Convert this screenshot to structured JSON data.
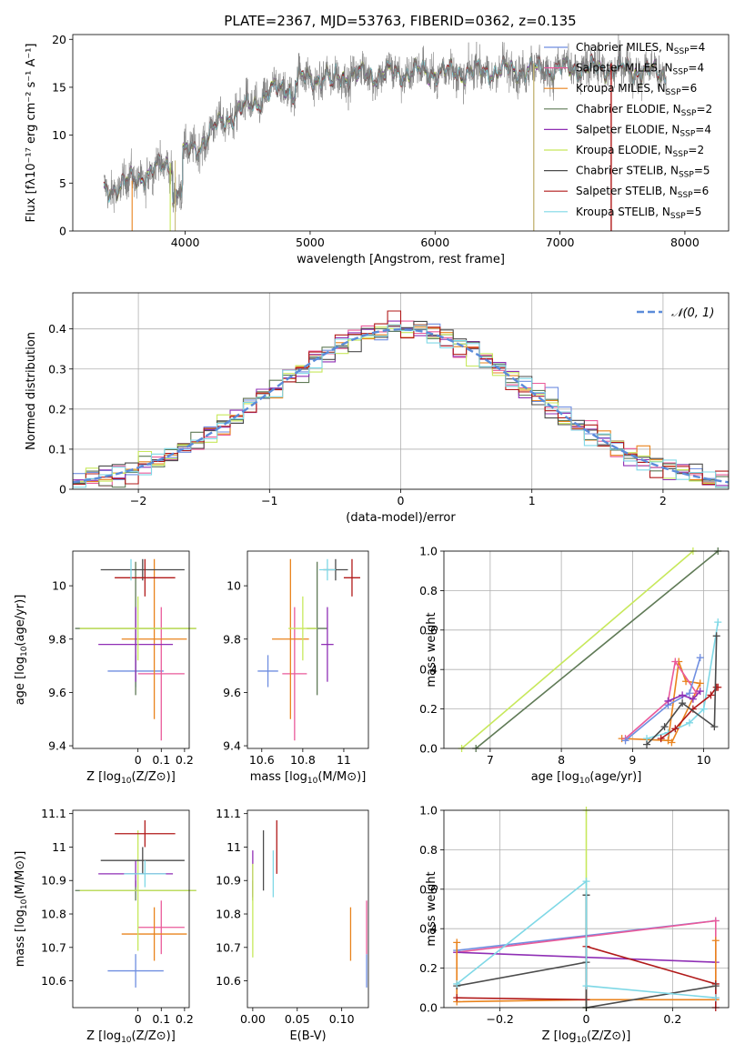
{
  "figure": {
    "title": "PLATE=2367, MJD=53763, FIBERID=0362, z=0.135"
  },
  "colors": {
    "Chabrier MILES": "#6f8ee0",
    "Salpeter MILES": "#ea5a9a",
    "Kroupa MILES": "#e9831d",
    "Chabrier ELODIE": "#5f7a56",
    "Salpeter ELODIE": "#8f2fb5",
    "Kroupa ELODIE": "#c7e85b",
    "Chabrier STELIB": "#4c4c4c",
    "Salpeter STELIB": "#b11a1a",
    "Kroupa STELIB": "#7fd8e6",
    "data": "#7a7a7a",
    "normal": "#5b8bd9"
  },
  "chart_data": [
    {
      "id": "spectrum",
      "type": "line",
      "title": "PLATE=2367, MJD=53763, FIBERID=0362, z=0.135",
      "xlabel": "wavelength [Angstrom, rest frame]",
      "ylabel": "Flux [fλ10⁻¹⁷ erg cm⁻² s⁻¹ A⁻¹]",
      "xlim": [
        3100,
        8350
      ],
      "ylim": [
        0,
        20.5
      ],
      "xticks": [
        4000,
        5000,
        6000,
        7000,
        8000
      ],
      "yticks": [
        0,
        5,
        10,
        15,
        20
      ],
      "grid": false,
      "legend_position": "top-right",
      "continuum": {
        "x": [
          3350,
          3500,
          3700,
          3900,
          4100,
          4300,
          4500,
          4700,
          4900,
          5100,
          5300,
          5500,
          5700,
          5900,
          6100,
          6300,
          6500,
          6700,
          6900,
          7100,
          7300,
          7500,
          7700,
          7850
        ],
        "y": [
          4.2,
          4.8,
          6.0,
          7.2,
          8.8,
          11.5,
          13.0,
          14.5,
          15.8,
          16.0,
          16.2,
          16.3,
          16.5,
          16.6,
          16.5,
          16.6,
          16.7,
          16.8,
          16.9,
          16.9,
          17.0,
          16.9,
          16.6,
          16.4
        ]
      },
      "series": [
        {
          "name": "Chabrier MILES, N_SSP=4",
          "color": "#6f8ee0"
        },
        {
          "name": "Salpeter MILES, N_SSP=4",
          "color": "#ea5a9a"
        },
        {
          "name": "Kroupa MILES, N_SSP=6",
          "color": "#e9831d"
        },
        {
          "name": "Chabrier ELODIE, N_SSP=2",
          "color": "#5f7a56"
        },
        {
          "name": "Salpeter ELODIE, N_SSP=4",
          "color": "#8f2fb5"
        },
        {
          "name": "Kroupa ELODIE, N_SSP=2",
          "color": "#c7e85b"
        },
        {
          "name": "Chabrier STELIB, N_SSP=5",
          "color": "#4c4c4c"
        },
        {
          "name": "Salpeter STELIB, N_SSP=6",
          "color": "#b11a1a"
        },
        {
          "name": "Kroupa STELIB, N_SSP=5",
          "color": "#7fd8e6"
        }
      ],
      "legend": [
        {
          "pre": "Chabrier MILES, N",
          "sub": "SSP",
          "post": "=4",
          "color": "#6f8ee0"
        },
        {
          "pre": "Salpeter MILES, N",
          "sub": "SSP",
          "post": "=4",
          "color": "#ea5a9a"
        },
        {
          "pre": "Kroupa MILES, N",
          "sub": "SSP",
          "post": "=6",
          "color": "#e9831d"
        },
        {
          "pre": "Chabrier ELODIE, N",
          "sub": "SSP",
          "post": "=2",
          "color": "#5f7a56"
        },
        {
          "pre": "Salpeter ELODIE, N",
          "sub": "SSP",
          "post": "=4",
          "color": "#8f2fb5"
        },
        {
          "pre": "Kroupa ELODIE, N",
          "sub": "SSP",
          "post": "=2",
          "color": "#c7e85b"
        },
        {
          "pre": "Chabrier STELIB, N",
          "sub": "SSP",
          "post": "=5",
          "color": "#4c4c4c"
        },
        {
          "pre": "Salpeter STELIB, N",
          "sub": "SSP",
          "post": "=6",
          "color": "#b11a1a"
        },
        {
          "pre": "Kroupa STELIB, N",
          "sub": "SSP",
          "post": "=5",
          "color": "#7fd8e6"
        }
      ],
      "vertical_lines": [
        {
          "x": 6790,
          "color": "#c7b87a"
        },
        {
          "x": 7410,
          "color": "#b11a1a"
        }
      ]
    },
    {
      "id": "residuals",
      "type": "line",
      "xlabel": "(data-model)/error",
      "ylabel": "Normed distribution",
      "xlim": [
        -2.5,
        2.5
      ],
      "ylim": [
        0,
        0.49
      ],
      "xticks": [
        -2,
        -1,
        0,
        1,
        2
      ],
      "yticks": [
        0.0,
        0.1,
        0.2,
        0.3,
        0.4
      ],
      "grid": true,
      "legend_position": "top-right",
      "legend": "𝒩(0, 1)",
      "normal": {
        "mean": 0,
        "sigma": 1
      }
    },
    {
      "id": "age-vs-z",
      "type": "scatter",
      "xlabel_pre": "Z [log",
      "xlabel_sub": "10",
      "xlabel_post": "(Z/Z⊙)]",
      "ylabel_pre": "age  [log",
      "ylabel_sub": "10",
      "ylabel_post": "(age/yr)]",
      "xlim": [
        -0.28,
        0.22
      ],
      "ylim": [
        9.39,
        10.13
      ],
      "xticks": [
        0.0,
        0.1,
        0.2
      ],
      "yticks": [
        9.4,
        9.6,
        9.8,
        10.0
      ],
      "grid": false,
      "points": [
        {
          "x": -0.01,
          "y": 9.68,
          "xerr": 0.12,
          "yerr": 0.06,
          "color": "#6f8ee0"
        },
        {
          "x": 0.1,
          "y": 9.67,
          "xerr": 0.1,
          "yerr": 0.25,
          "color": "#ea5a9a"
        },
        {
          "x": 0.07,
          "y": 9.8,
          "xerr": 0.14,
          "yerr": 0.3,
          "color": "#e9831d"
        },
        {
          "x": -0.01,
          "y": 9.84,
          "xerr": 0.26,
          "yerr": 0.25,
          "color": "#5f7a56"
        },
        {
          "x": -0.01,
          "y": 9.78,
          "xerr": 0.16,
          "yerr": 0.14,
          "color": "#8f2fb5"
        },
        {
          "x": 0.0,
          "y": 9.84,
          "xerr": 0.25,
          "yerr": 0.12,
          "color": "#c7e85b"
        },
        {
          "x": 0.02,
          "y": 10.06,
          "xerr": 0.18,
          "yerr": 0.04,
          "color": "#4c4c4c"
        },
        {
          "x": 0.03,
          "y": 10.03,
          "xerr": 0.13,
          "yerr": 0.07,
          "color": "#b11a1a"
        },
        {
          "x": -0.03,
          "y": 10.06,
          "xerr": 0.0,
          "yerr": 0.04,
          "color": "#7fd8e6"
        }
      ]
    },
    {
      "id": "age-vs-mass",
      "type": "scatter",
      "xlabel_pre": "mass [log",
      "xlabel_sub": "10",
      "xlabel_post": "(M/M⊙)]",
      "xlim": [
        10.53,
        11.12
      ],
      "ylim": [
        9.39,
        10.13
      ],
      "xticks": [
        10.6,
        10.8,
        11.0
      ],
      "yticks": [
        9.4,
        9.6,
        9.8,
        10.0
      ],
      "grid": false,
      "points": [
        {
          "x": 10.63,
          "y": 9.68,
          "xerr": 0.05,
          "yerr": 0.06,
          "color": "#6f8ee0"
        },
        {
          "x": 10.76,
          "y": 9.67,
          "xerr": 0.06,
          "yerr": 0.25,
          "color": "#ea5a9a"
        },
        {
          "x": 10.74,
          "y": 9.8,
          "xerr": 0.09,
          "yerr": 0.3,
          "color": "#e9831d"
        },
        {
          "x": 10.87,
          "y": 9.84,
          "xerr": 0.05,
          "yerr": 0.25,
          "color": "#5f7a56"
        },
        {
          "x": 10.92,
          "y": 9.78,
          "xerr": 0.03,
          "yerr": 0.14,
          "color": "#8f2fb5"
        },
        {
          "x": 10.8,
          "y": 9.84,
          "xerr": 0.07,
          "yerr": 0.12,
          "color": "#c7e85b"
        },
        {
          "x": 10.96,
          "y": 10.06,
          "xerr": 0.06,
          "yerr": 0.04,
          "color": "#4c4c4c"
        },
        {
          "x": 11.04,
          "y": 10.03,
          "xerr": 0.04,
          "yerr": 0.07,
          "color": "#b11a1a"
        },
        {
          "x": 10.92,
          "y": 10.06,
          "xerr": 0.04,
          "yerr": 0.04,
          "color": "#7fd8e6"
        }
      ]
    },
    {
      "id": "weight-vs-age",
      "type": "line",
      "xlabel_pre": "age  [log",
      "xlabel_sub": "10",
      "xlabel_post": "(age/yr)]",
      "ylabel": "mass weight",
      "xlim": [
        6.35,
        10.35
      ],
      "ylim": [
        0,
        1.0
      ],
      "xticks": [
        7,
        8,
        9,
        10
      ],
      "yticks": [
        0.0,
        0.2,
        0.4,
        0.6,
        0.8,
        1.0
      ],
      "grid": true,
      "series": [
        {
          "name": "Kroupa ELODIE",
          "color": "#c7e85b",
          "x": [
            6.6,
            9.85
          ],
          "y": [
            0.0,
            1.0
          ]
        },
        {
          "name": "Chabrier ELODIE",
          "color": "#5f7a56",
          "x": [
            6.8,
            10.2
          ],
          "y": [
            0.0,
            1.0
          ]
        },
        {
          "name": "Kroupa MILES",
          "color": "#e9831d",
          "x": [
            8.85,
            9.5,
            9.65,
            9.75,
            9.95,
            9.55
          ],
          "y": [
            0.05,
            0.04,
            0.44,
            0.34,
            0.33,
            0.03
          ]
        },
        {
          "name": "Salpeter MILES",
          "color": "#ea5a9a",
          "x": [
            8.9,
            9.5,
            9.6,
            9.9
          ],
          "y": [
            0.05,
            0.24,
            0.44,
            0.28
          ]
        },
        {
          "name": "Chabrier MILES",
          "color": "#6f8ee0",
          "x": [
            8.9,
            9.5,
            9.8,
            9.95
          ],
          "y": [
            0.04,
            0.22,
            0.28,
            0.46
          ]
        },
        {
          "name": "Salpeter ELODIE",
          "color": "#8f2fb5",
          "x": [
            9.5,
            9.7,
            9.85,
            9.95
          ],
          "y": [
            0.24,
            0.27,
            0.25,
            0.29
          ]
        },
        {
          "name": "Kroupa STELIB",
          "color": "#7fd8e6",
          "x": [
            9.2,
            9.5,
            9.8,
            10.0,
            10.2
          ],
          "y": [
            0.05,
            0.08,
            0.13,
            0.2,
            0.64
          ]
        },
        {
          "name": "Salpeter STELIB",
          "color": "#b11a1a",
          "x": [
            9.4,
            9.6,
            9.85,
            10.1,
            10.18,
            10.2
          ],
          "y": [
            0.05,
            0.1,
            0.2,
            0.27,
            0.31,
            0.31
          ]
        },
        {
          "name": "Chabrier STELIB",
          "color": "#4c4c4c",
          "x": [
            9.2,
            9.45,
            9.7,
            10.15,
            10.18
          ],
          "y": [
            0.02,
            0.11,
            0.23,
            0.11,
            0.57
          ]
        }
      ]
    },
    {
      "id": "mass-vs-z",
      "type": "scatter",
      "xlabel_pre": "Z [log",
      "xlabel_sub": "10",
      "xlabel_post": "(Z/Z⊙)]",
      "ylabel_pre": "mass [log",
      "ylabel_sub": "10",
      "ylabel_post": "(M/M⊙)]",
      "xlim": [
        -0.28,
        0.22
      ],
      "ylim": [
        10.52,
        11.11
      ],
      "xticks": [
        0.0,
        0.1,
        0.2
      ],
      "yticks": [
        10.6,
        10.7,
        10.8,
        10.9,
        11.0,
        11.1
      ],
      "grid": false,
      "points": [
        {
          "x": -0.01,
          "y": 10.63,
          "xerr": 0.12,
          "yerr": 0.05,
          "color": "#6f8ee0"
        },
        {
          "x": 0.1,
          "y": 10.76,
          "xerr": 0.1,
          "yerr": 0.08,
          "color": "#ea5a9a"
        },
        {
          "x": 0.07,
          "y": 10.74,
          "xerr": 0.14,
          "yerr": 0.08,
          "color": "#e9831d"
        },
        {
          "x": -0.01,
          "y": 10.87,
          "xerr": 0.26,
          "yerr": 0.03,
          "color": "#5f7a56"
        },
        {
          "x": -0.01,
          "y": 10.92,
          "xerr": 0.16,
          "yerr": 0.04,
          "color": "#8f2fb5"
        },
        {
          "x": 0.0,
          "y": 10.87,
          "xerr": 0.25,
          "yerr": 0.18,
          "color": "#c7e85b"
        },
        {
          "x": 0.02,
          "y": 10.96,
          "xerr": 0.18,
          "yerr": 0.04,
          "color": "#4c4c4c"
        },
        {
          "x": 0.03,
          "y": 11.04,
          "xerr": 0.13,
          "yerr": 0.04,
          "color": "#b11a1a"
        },
        {
          "x": 0.03,
          "y": 10.92,
          "xerr": 0.09,
          "yerr": 0.04,
          "color": "#7fd8e6"
        }
      ]
    },
    {
      "id": "mass-vs-ebv",
      "type": "scatter",
      "xlabel": "E(B-V)",
      "xlim": [
        -0.006,
        0.13
      ],
      "ylim": [
        10.52,
        11.11
      ],
      "xticks": [
        0.0,
        0.05,
        0.1
      ],
      "xticklabels": [
        "0.00",
        "0.05",
        "0.10"
      ],
      "yticks": [
        10.6,
        10.7,
        10.8,
        10.9,
        11.0,
        11.1
      ],
      "grid": false,
      "points": [
        {
          "x": 0.128,
          "y": 10.63,
          "yerr": 0.05,
          "color": "#6f8ee0"
        },
        {
          "x": 0.128,
          "y": 10.76,
          "yerr": 0.08,
          "color": "#ea5a9a"
        },
        {
          "x": 0.11,
          "y": 10.74,
          "yerr": 0.08,
          "color": "#e9831d"
        },
        {
          "x": 0.0,
          "y": 10.87,
          "yerr": 0.03,
          "color": "#5f7a56"
        },
        {
          "x": 0.0,
          "y": 10.92,
          "yerr": 0.07,
          "color": "#8f2fb5"
        },
        {
          "x": 0.0,
          "y": 10.81,
          "yerr": 0.14,
          "color": "#c7e85b"
        },
        {
          "x": 0.012,
          "y": 10.96,
          "yerr": 0.09,
          "color": "#4c4c4c"
        },
        {
          "x": 0.027,
          "y": 11.0,
          "yerr": 0.08,
          "color": "#b11a1a"
        },
        {
          "x": 0.023,
          "y": 10.92,
          "yerr": 0.07,
          "color": "#7fd8e6"
        }
      ]
    },
    {
      "id": "weight-vs-z",
      "type": "line",
      "xlabel_pre": "Z [log",
      "xlabel_sub": "10",
      "xlabel_post": "(Z/Z⊙)]",
      "ylabel": "mass weight",
      "xlim": [
        -0.33,
        0.33
      ],
      "ylim": [
        0,
        1.0
      ],
      "xticks": [
        -0.2,
        0.0,
        0.2
      ],
      "yticks": [
        0.0,
        0.2,
        0.4,
        0.6,
        0.8,
        1.0
      ],
      "grid": true,
      "series": [
        {
          "name": "Kroupa ELODIE",
          "color": "#c7e85b",
          "x": [
            0.0,
            0.0
          ],
          "y": [
            0.0,
            1.0
          ]
        },
        {
          "name": "Chabrier ELODIE",
          "color": "#5f7a56",
          "x": [
            0.0,
            0.0
          ],
          "y": [
            0.0,
            0.57
          ]
        },
        {
          "name": "Chabrier MILES",
          "color": "#6f8ee0",
          "x": [
            -0.3,
            0.3
          ],
          "y": [
            0.29,
            0.44
          ]
        },
        {
          "name": "Salpeter MILES",
          "color": "#ea5a9a",
          "x": [
            -0.3,
            0.3,
            0.3
          ],
          "y": [
            0.28,
            0.44,
            0.05
          ]
        },
        {
          "name": "Salpeter ELODIE",
          "color": "#8f2fb5",
          "x": [
            -0.3,
            0.3
          ],
          "y": [
            0.28,
            0.23
          ]
        },
        {
          "name": "Kroupa MILES",
          "color": "#e9831d",
          "x": [
            -0.3,
            -0.3,
            0.0,
            0.3,
            0.3
          ],
          "y": [
            0.33,
            0.03,
            0.04,
            0.04,
            0.34
          ]
        },
        {
          "name": "Salpeter STELIB",
          "color": "#b11a1a",
          "x": [
            -0.3,
            0.0,
            0.0,
            0.3,
            0.3
          ],
          "y": [
            0.05,
            0.04,
            0.31,
            0.12,
            0.0
          ]
        },
        {
          "name": "Chabrier STELIB",
          "color": "#4c4c4c",
          "x": [
            -0.3,
            0.0,
            0.0,
            0.0,
            0.3
          ],
          "y": [
            0.11,
            0.23,
            0.57,
            0.0,
            0.11
          ]
        },
        {
          "name": "Kroupa STELIB",
          "color": "#7fd8e6",
          "x": [
            -0.3,
            0.0,
            0.0,
            0.3
          ],
          "y": [
            0.12,
            0.64,
            0.11,
            0.05
          ]
        }
      ]
    }
  ]
}
